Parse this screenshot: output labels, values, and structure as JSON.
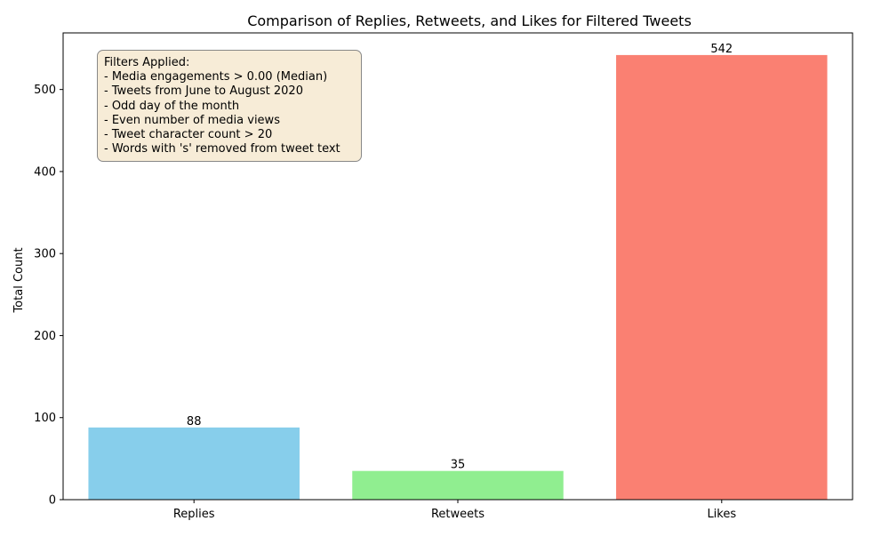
{
  "chart_data": {
    "type": "bar",
    "title": "Comparison of Replies, Retweets, and Likes for Filtered Tweets",
    "xlabel": "",
    "ylabel": "Total Count",
    "categories": [
      "Replies",
      "Retweets",
      "Likes"
    ],
    "values": [
      88,
      35,
      542
    ],
    "colors": [
      "#87ceeb",
      "#90ee90",
      "#fa8072"
    ],
    "data_labels": [
      "88",
      "35",
      "542"
    ],
    "ylim": [
      0,
      569
    ],
    "yticks": [
      0,
      100,
      200,
      300,
      400,
      500
    ],
    "grid": false,
    "annotation": {
      "lines": [
        "Filters Applied:",
        "- Media engagements > 0.00 (Median)",
        "- Tweets from June to August 2020",
        "- Odd day of the month",
        "- Even number of media views",
        "- Tweet character count > 20",
        "- Words with 's' removed from tweet text"
      ],
      "placement": "top-left"
    }
  }
}
